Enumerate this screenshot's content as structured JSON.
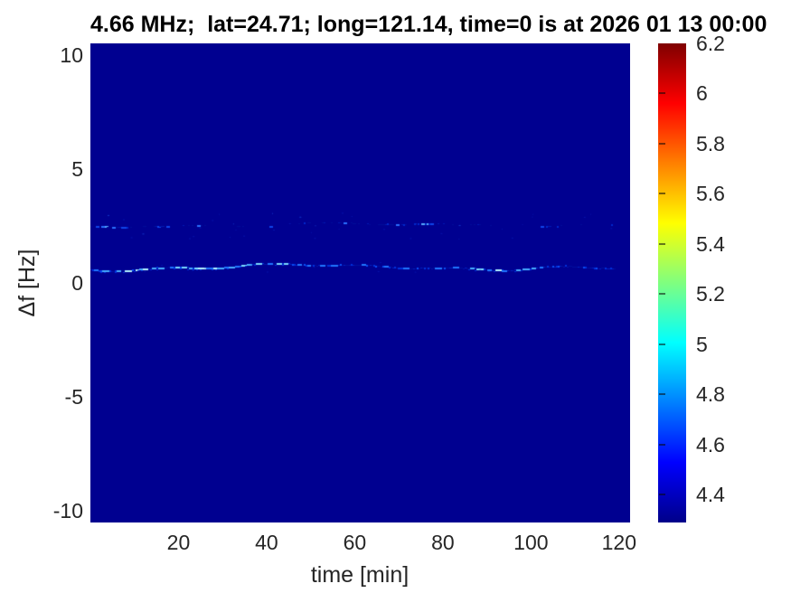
{
  "figure": {
    "background_color": "#ffffff",
    "text_color": "#262626",
    "title_color": "#000000"
  },
  "chart_data": {
    "type": "heatmap",
    "title": "4.66 MHz;  lat=24.71; long=121.14, time=0 is at 2026 01 13 00:00",
    "xlabel": "time [min]",
    "ylabel": "Δf [Hz]",
    "xlim": [
      0,
      122.5
    ],
    "ylim": [
      -10.5,
      10.5
    ],
    "xticks": [
      20,
      40,
      60,
      80,
      100,
      120
    ],
    "yticks": [
      10,
      5,
      0,
      -5,
      -10
    ],
    "grid": false,
    "legend": false,
    "colormap": "jet",
    "colormap_stops": [
      {
        "pos": 0.0,
        "color": "#000089"
      },
      {
        "pos": 0.125,
        "color": "#0000ff"
      },
      {
        "pos": 0.375,
        "color": "#00ffff"
      },
      {
        "pos": 0.625,
        "color": "#ffff00"
      },
      {
        "pos": 0.875,
        "color": "#ff0000"
      },
      {
        "pos": 1.0,
        "color": "#7f0000"
      }
    ],
    "colorbar": {
      "position": "right",
      "min": 4.29,
      "max": 6.2,
      "ticks": [
        4.4,
        4.6,
        4.8,
        5,
        5.2,
        5.4,
        5.6,
        5.8,
        6,
        6.2
      ]
    },
    "background_value": 4.3,
    "background_color": "#000090",
    "traces": [
      {
        "name": "doppler-line-main",
        "df_hz": 0.65,
        "t_start_min": 0,
        "t_end_min": 119,
        "density": 0.96,
        "typical_value": 4.8,
        "peak_value": 5.4,
        "palette": [
          "#000f9c",
          "#001fc0",
          "#0030dc",
          "#0a4df5",
          "#1f76ff",
          "#46adff",
          "#7adcff",
          "#b4f4ff"
        ]
      },
      {
        "name": "doppler-line-upper",
        "df_hz": 2.5,
        "t_start_min": 0,
        "t_end_min": 119,
        "density": 0.5,
        "typical_value": 4.5,
        "peak_value": 4.9,
        "palette": [
          "#000c98",
          "#0018b0",
          "#0028cc",
          "#0f44ea",
          "#2a70ff",
          "#55a8ff"
        ]
      }
    ]
  }
}
